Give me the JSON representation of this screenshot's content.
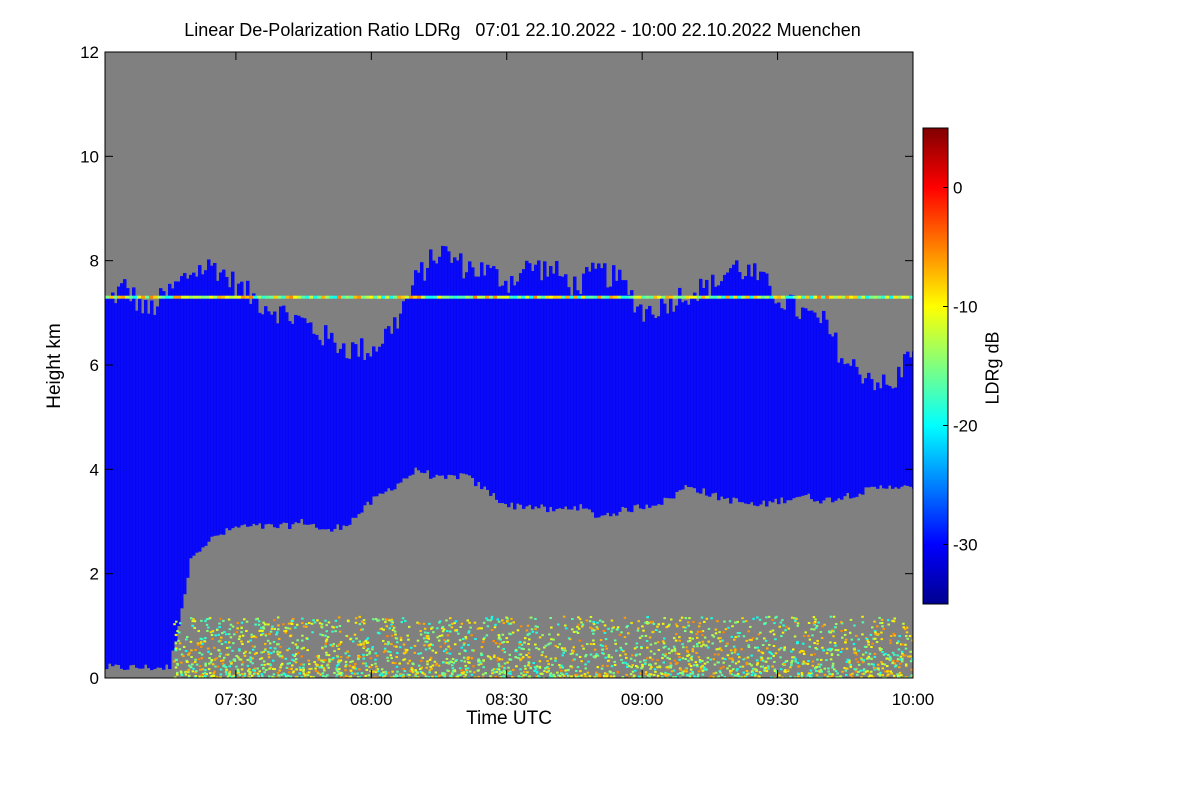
{
  "chart_data": {
    "type": "heatmap",
    "title": "Linear De-Polarization Ratio LDRg   07:01 22.10.2022 - 10:00 22.10.2022 Muenchen",
    "xlabel": "Time UTC",
    "ylabel": "Height km",
    "colorbar_label": "LDRg dB",
    "x_range": [
      "07:01",
      "10:00"
    ],
    "x_ticks": [
      "07:30",
      "08:00",
      "08:30",
      "09:00",
      "09:30",
      "10:00"
    ],
    "y_range": [
      0,
      12
    ],
    "y_ticks": [
      "0",
      "2",
      "4",
      "6",
      "8",
      "10",
      "12"
    ],
    "colorbar_range": [
      -35,
      5
    ],
    "colorbar_ticks": [
      "0",
      "-10",
      "-20",
      "-30"
    ],
    "colormap": "jet",
    "no_data_color": "#808080",
    "features": {
      "cirrus_cloud_layer": {
        "ldr_db": -30,
        "base_km": 3.5,
        "top_km": 8.0
      },
      "noisy_boundary_layer": {
        "ldr_db_range": [
          -20,
          -5
        ],
        "top_km": 1.2
      },
      "horizontal_artifact_line": {
        "height_km": 7.3
      }
    },
    "cloud_top_km": [
      [
        "07:01",
        7.2
      ],
      [
        "07:05",
        7.5
      ],
      [
        "07:10",
        7.0
      ],
      [
        "07:15",
        7.4
      ],
      [
        "07:20",
        7.8
      ],
      [
        "07:25",
        7.9
      ],
      [
        "07:30",
        7.5
      ],
      [
        "07:35",
        7.2
      ],
      [
        "07:40",
        7.0
      ],
      [
        "07:45",
        6.8
      ],
      [
        "07:50",
        6.5
      ],
      [
        "07:55",
        6.3
      ],
      [
        "08:00",
        6.3
      ],
      [
        "08:05",
        6.8
      ],
      [
        "08:10",
        7.7
      ],
      [
        "08:15",
        8.2
      ],
      [
        "08:20",
        7.9
      ],
      [
        "08:25",
        7.8
      ],
      [
        "08:30",
        7.6
      ],
      [
        "08:35",
        7.9
      ],
      [
        "08:40",
        7.8
      ],
      [
        "08:45",
        7.5
      ],
      [
        "08:50",
        7.8
      ],
      [
        "08:55",
        7.6
      ],
      [
        "09:00",
        7.0
      ],
      [
        "09:05",
        7.2
      ],
      [
        "09:10",
        7.4
      ],
      [
        "09:15",
        7.5
      ],
      [
        "09:20",
        7.9
      ],
      [
        "09:25",
        7.7
      ],
      [
        "09:30",
        7.3
      ],
      [
        "09:35",
        7.0
      ],
      [
        "09:40",
        6.8
      ],
      [
        "09:45",
        6.0
      ],
      [
        "09:50",
        5.8
      ],
      [
        "09:55",
        5.5
      ],
      [
        "10:00",
        6.5
      ]
    ],
    "cloud_base_km": [
      [
        "07:01",
        0.2
      ],
      [
        "07:05",
        0.2
      ],
      [
        "07:10",
        0.2
      ],
      [
        "07:15",
        0.2
      ],
      [
        "07:20",
        2.4
      ],
      [
        "07:25",
        2.7
      ],
      [
        "07:30",
        2.9
      ],
      [
        "07:35",
        2.9
      ],
      [
        "07:40",
        2.9
      ],
      [
        "07:45",
        3.0
      ],
      [
        "07:50",
        2.8
      ],
      [
        "07:55",
        3.0
      ],
      [
        "08:00",
        3.4
      ],
      [
        "08:05",
        3.7
      ],
      [
        "08:10",
        4.0
      ],
      [
        "08:15",
        3.8
      ],
      [
        "08:20",
        3.9
      ],
      [
        "08:25",
        3.6
      ],
      [
        "08:30",
        3.3
      ],
      [
        "08:35",
        3.3
      ],
      [
        "08:40",
        3.2
      ],
      [
        "08:45",
        3.3
      ],
      [
        "08:50",
        3.1
      ],
      [
        "08:55",
        3.2
      ],
      [
        "09:00",
        3.3
      ],
      [
        "09:05",
        3.4
      ],
      [
        "09:10",
        3.7
      ],
      [
        "09:15",
        3.5
      ],
      [
        "09:20",
        3.4
      ],
      [
        "09:25",
        3.3
      ],
      [
        "09:30",
        3.4
      ],
      [
        "09:35",
        3.5
      ],
      [
        "09:40",
        3.4
      ],
      [
        "09:45",
        3.5
      ],
      [
        "09:50",
        3.6
      ],
      [
        "09:55",
        3.7
      ],
      [
        "10:00",
        3.6
      ]
    ]
  }
}
